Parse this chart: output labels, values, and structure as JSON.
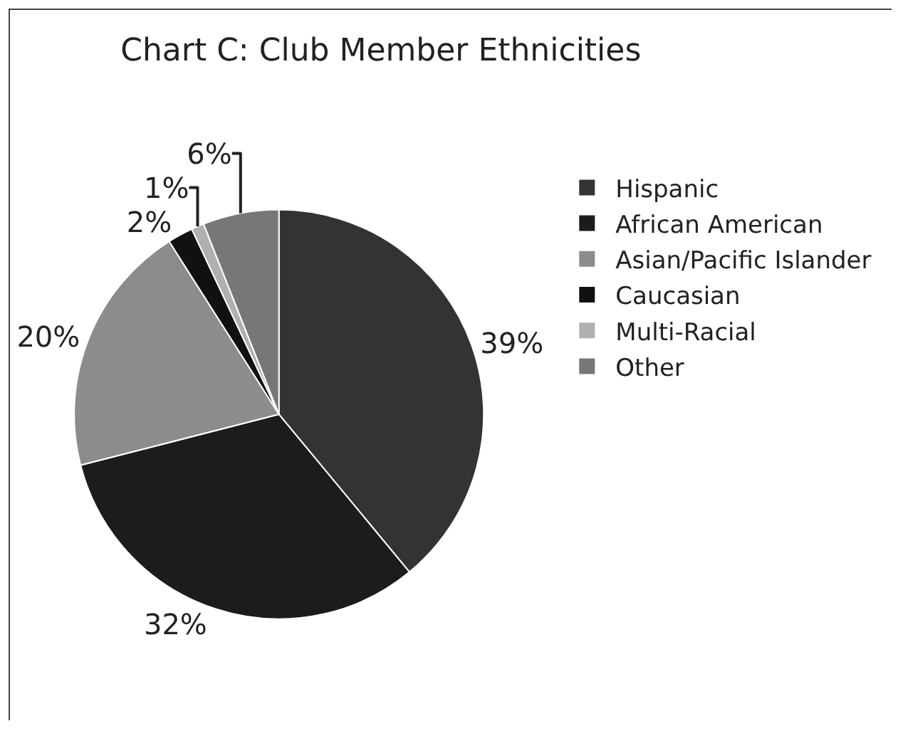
{
  "chart_data": {
    "type": "pie",
    "title": "Chart C: Club Member Ethnicities",
    "categories": [
      "Hispanic",
      "African American",
      "Asian/Pacific Islander",
      "Caucasian",
      "Multi-Racial",
      "Other"
    ],
    "values": [
      39,
      32,
      20,
      2,
      1,
      6
    ],
    "value_labels": [
      "39%",
      "32%",
      "20%",
      "2%",
      "1%",
      "6%"
    ],
    "colors": [
      "#333333",
      "#1c1c1c",
      "#8c8c8c",
      "#111111",
      "#b0b0b0",
      "#777777"
    ],
    "legend": "right"
  }
}
